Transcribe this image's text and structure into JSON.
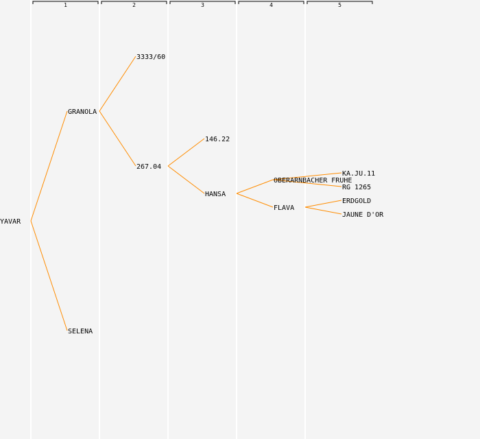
{
  "generations": [
    "1",
    "2",
    "3",
    "4",
    "5"
  ],
  "colors": {
    "background": "#f4f4f4",
    "edge": "#ff8c00",
    "text": "#000000"
  },
  "nodes": [
    {
      "id": "yavar",
      "label": "YAVAR"
    },
    {
      "id": "granola",
      "label": "GRANOLA"
    },
    {
      "id": "selena",
      "label": "SELENA"
    },
    {
      "id": "g3333",
      "label": "3333/60"
    },
    {
      "id": "g26704",
      "label": "267.04"
    },
    {
      "id": "g14622",
      "label": "146.22"
    },
    {
      "id": "hansa",
      "label": "HANSA"
    },
    {
      "id": "oberarnbacher",
      "label": "OBERARNBACHER FRUHE"
    },
    {
      "id": "flava",
      "label": "FLAVA"
    },
    {
      "id": "kaju11",
      "label": "KA.JU.11"
    },
    {
      "id": "rg1265",
      "label": "RG 1265"
    },
    {
      "id": "erdgold",
      "label": "ERDGOLD"
    },
    {
      "id": "jaunedor",
      "label": "JAUNE D'OR"
    }
  ],
  "edges": [
    [
      "yavar",
      "granola"
    ],
    [
      "yavar",
      "selena"
    ],
    [
      "granola",
      "g3333"
    ],
    [
      "granola",
      "g26704"
    ],
    [
      "g26704",
      "g14622"
    ],
    [
      "g26704",
      "hansa"
    ],
    [
      "hansa",
      "oberarnbacher"
    ],
    [
      "hansa",
      "flava"
    ],
    [
      "oberarnbacher",
      "kaju11"
    ],
    [
      "oberarnbacher",
      "rg1265"
    ],
    [
      "flava",
      "erdgold"
    ],
    [
      "flava",
      "jaunedor"
    ]
  ]
}
